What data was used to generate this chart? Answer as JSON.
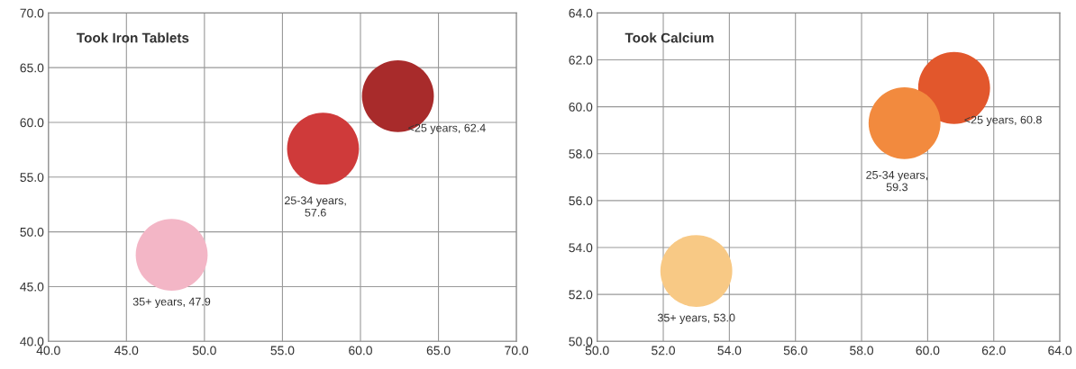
{
  "chart_data": [
    {
      "type": "bubble",
      "title": "Took Iron Tablets",
      "x": [
        62.4,
        57.6,
        47.9
      ],
      "values": [
        62.4,
        57.6,
        47.9
      ],
      "sizes": [
        1,
        1,
        1
      ],
      "colors": [
        "#a82b2b",
        "#cf3a3a",
        "#f3b6c6"
      ],
      "value_labels": [
        "<25 years, 62.4",
        "25-34 years,\n57.6",
        "35+ years, 47.9"
      ],
      "xlim": [
        40,
        70
      ],
      "xticks": [
        {
          "value": 40,
          "label": "40.0"
        },
        {
          "value": 45,
          "label": "45.0"
        },
        {
          "value": 50,
          "label": "50.0"
        },
        {
          "value": 55,
          "label": "55.0"
        },
        {
          "value": 60,
          "label": "60.0"
        },
        {
          "value": 65,
          "label": "65.0"
        },
        {
          "value": 70,
          "label": "70.0"
        }
      ],
      "ylim": [
        40,
        70
      ],
      "yticks": [
        {
          "value": 40,
          "label": "40.0"
        },
        {
          "value": 45,
          "label": "45.0"
        },
        {
          "value": 50,
          "label": "50.0"
        },
        {
          "value": 55,
          "label": "55.0"
        },
        {
          "value": 60,
          "label": "60.0"
        },
        {
          "value": 65,
          "label": "65.0"
        },
        {
          "value": 70,
          "label": "70.0"
        }
      ],
      "grid": true,
      "legend": false
    },
    {
      "type": "bubble",
      "title": "Took Calcium",
      "x": [
        60.8,
        59.3,
        53.0
      ],
      "values": [
        60.8,
        59.3,
        53.0
      ],
      "sizes": [
        1,
        1,
        1
      ],
      "colors": [
        "#e2572c",
        "#f28a3e",
        "#f8c985"
      ],
      "value_labels": [
        "<25 years, 60.8",
        "25-34 years,\n59.3",
        "35+ years, 53.0"
      ],
      "xlim": [
        50,
        64
      ],
      "xticks": [
        {
          "value": 50,
          "label": "50.0"
        },
        {
          "value": 52,
          "label": "52.0"
        },
        {
          "value": 54,
          "label": "54.0"
        },
        {
          "value": 56,
          "label": "56.0"
        },
        {
          "value": 58,
          "label": "58.0"
        },
        {
          "value": 60,
          "label": "60.0"
        },
        {
          "value": 62,
          "label": "62.0"
        },
        {
          "value": 64,
          "label": "64.0"
        }
      ],
      "ylim": [
        50,
        64
      ],
      "yticks": [
        {
          "value": 50,
          "label": "50.0"
        },
        {
          "value": 52,
          "label": "52.0"
        },
        {
          "value": 54,
          "label": "54.0"
        },
        {
          "value": 56,
          "label": "56.0"
        },
        {
          "value": 58,
          "label": "58.0"
        },
        {
          "value": 60,
          "label": "60.0"
        },
        {
          "value": 62,
          "label": "62.0"
        },
        {
          "value": 64,
          "label": "64.0"
        }
      ],
      "grid": true,
      "legend": false
    }
  ]
}
